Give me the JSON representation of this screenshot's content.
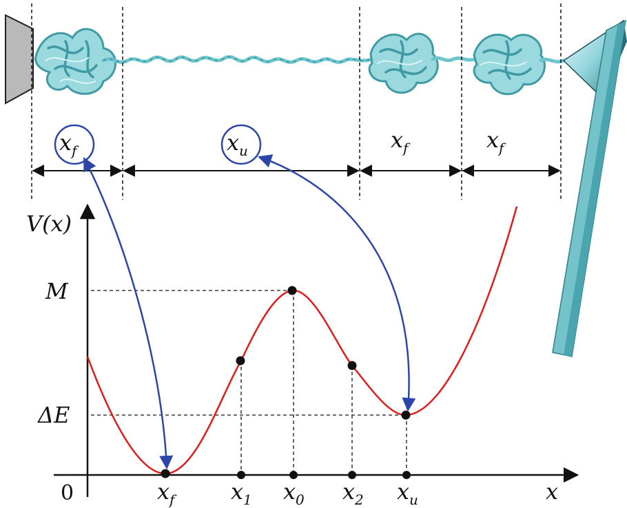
{
  "labels": {
    "axis_y": "V(x)",
    "axis_x": "x",
    "origin": "0",
    "level_M": "M",
    "level_dE": "ΔE",
    "segment_1": {
      "base": "x",
      "sub": "f"
    },
    "segment_2": {
      "base": "x",
      "sub": "u"
    },
    "segment_3": {
      "base": "x",
      "sub": "f"
    },
    "segment_4": {
      "base": "x",
      "sub": "f"
    },
    "tick_xf": {
      "base": "x",
      "sub": "f"
    },
    "tick_x1": {
      "base": "x",
      "sub": "1"
    },
    "tick_x0": {
      "base": "x",
      "sub": "0"
    },
    "tick_x2": {
      "base": "x",
      "sub": "2"
    },
    "tick_xu": {
      "base": "x",
      "sub": "u"
    }
  },
  "colors": {
    "potential_curve": "#e01b1b",
    "mapping_arrow": "#2b45a8",
    "protein": "#7fd0d6",
    "protein_dark": "#3f9aa3",
    "wall": "#b9b9b9",
    "cantilever": "#74c3cb",
    "axis": "#111111"
  },
  "icons": [
    "wall-surface-icon",
    "folded-domain-icon",
    "unfolded-chain-icon",
    "afm-cantilever-icon"
  ]
}
